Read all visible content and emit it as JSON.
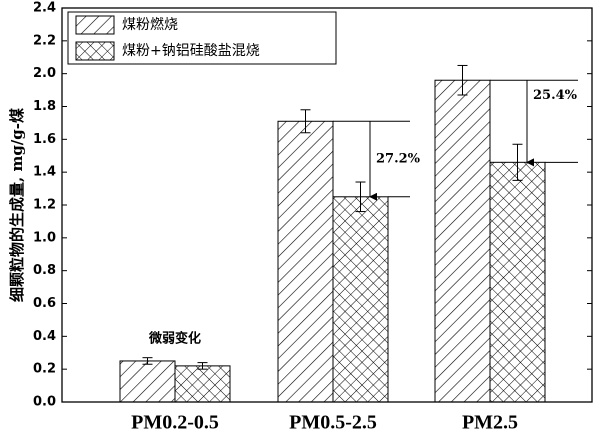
{
  "chart_data": {
    "type": "bar",
    "y_label": "细颗粒物的生成量, mg/g-煤",
    "categories": [
      "PM0.2-0.5",
      "PM0.5-2.5",
      "PM2.5"
    ],
    "series": [
      {
        "name": "煤粉燃烧",
        "pattern": "hatch",
        "values": [
          0.25,
          1.71,
          1.96
        ],
        "errors": [
          0.02,
          0.07,
          0.09
        ]
      },
      {
        "name": "煤粉+钠铝硅酸盐混烧",
        "pattern": "crosshatch",
        "values": [
          0.22,
          1.25,
          1.46
        ],
        "errors": [
          0.02,
          0.09,
          0.11
        ]
      }
    ],
    "annotations": [
      "微弱变化",
      "27.2%",
      "25.4%"
    ],
    "ylim": [
      0,
      2.4
    ],
    "yticks": [
      {
        "value": 0,
        "label": "0.0"
      },
      0.2,
      0.4,
      0.6,
      0.8,
      {
        "value": 1,
        "label": "1.0"
      },
      1.2,
      1.4,
      1.6,
      1.8,
      {
        "value": 2,
        "label": "2.0"
      },
      2.2,
      2.4
    ],
    "legend": "upper left"
  }
}
